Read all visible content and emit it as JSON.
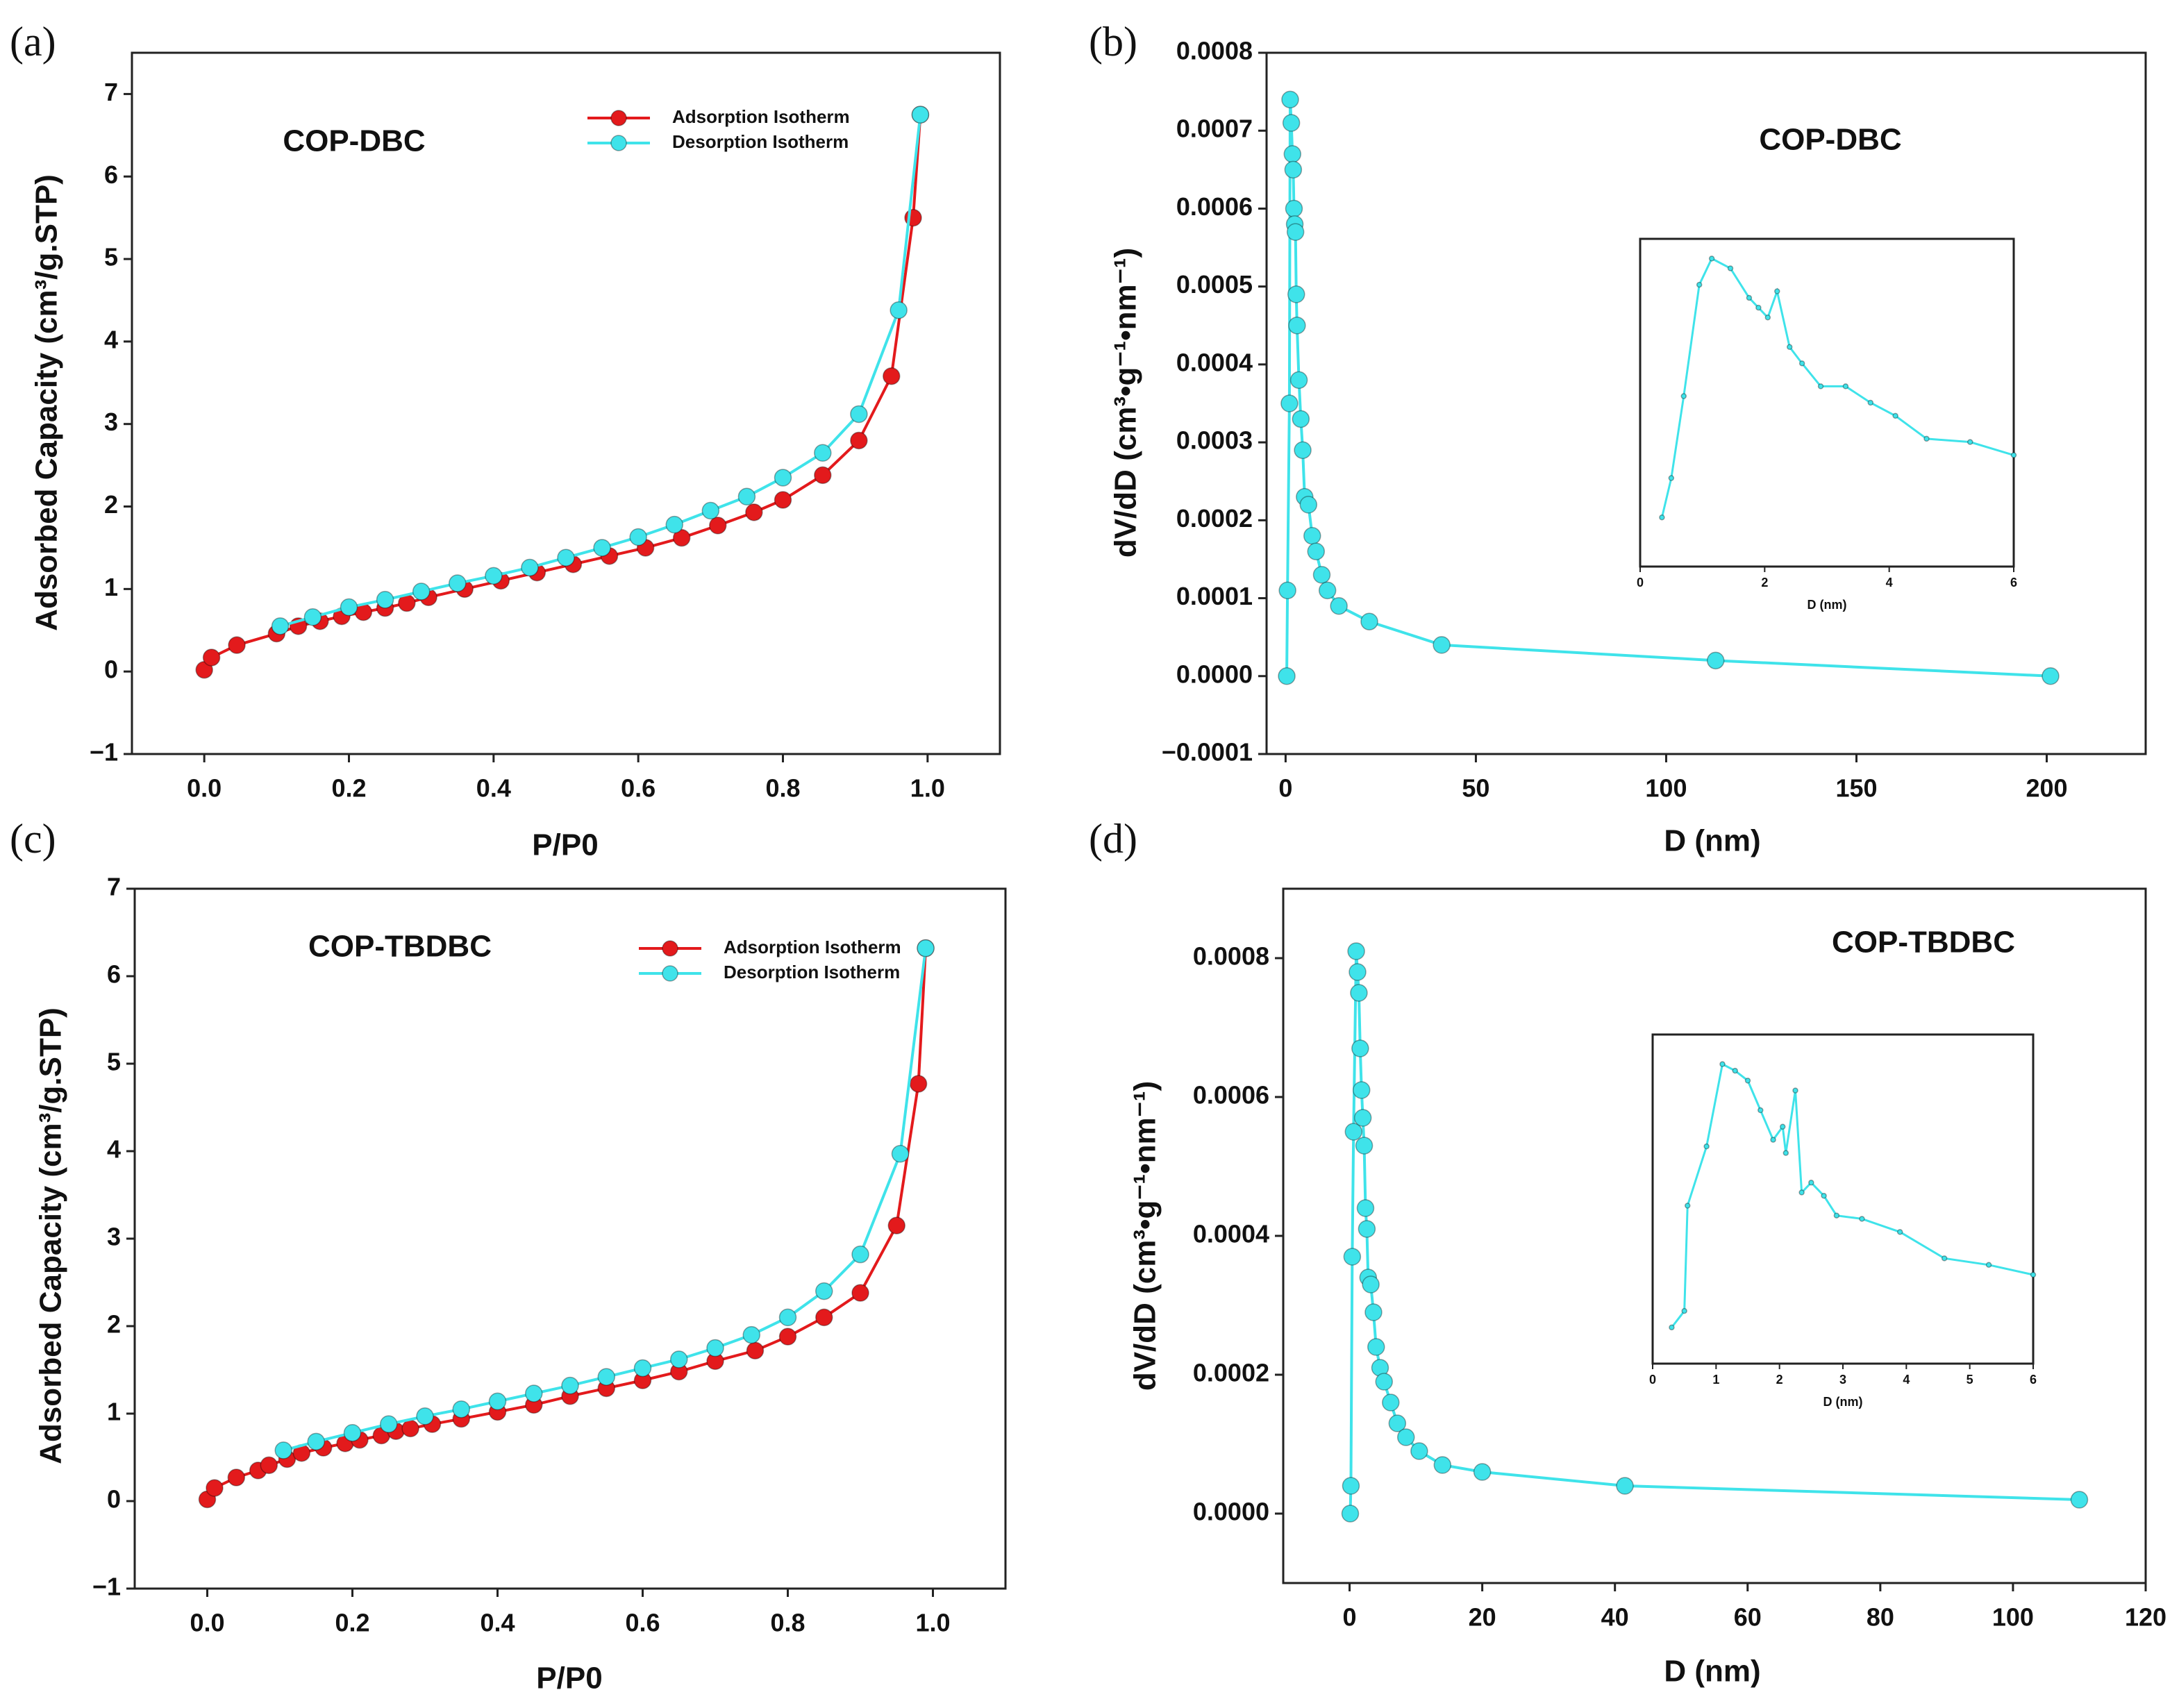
{
  "chart_data": [
    {
      "type": "line",
      "panel": "(a)",
      "title": "COP-DBC",
      "xlabel": "P/P0",
      "ylabel": "Adsorbed Capacity (cm³/g.STP)",
      "xlim": [
        -0.1,
        1.1
      ],
      "ylim": [
        -1,
        7.5
      ],
      "xticks": [
        {
          "value": 0,
          "label": "0.0"
        },
        {
          "value": 0.2,
          "label": "0.2"
        },
        {
          "value": 0.4,
          "label": "0.4"
        },
        {
          "value": 0.6,
          "label": "0.6"
        },
        {
          "value": 0.8,
          "label": "0.8"
        },
        {
          "value": 1,
          "label": "1.0"
        }
      ],
      "yticks": [
        {
          "value": -1,
          "label": "−1"
        },
        0,
        1,
        2,
        3,
        4,
        5,
        6,
        7
      ],
      "legend": "upper right",
      "series": [
        {
          "name": "Adsorption Isotherm",
          "color": "#e31a1c",
          "x": [
            0,
            0.01,
            0.045,
            0.1,
            0.13,
            0.16,
            0.19,
            0.22,
            0.25,
            0.28,
            0.31,
            0.36,
            0.41,
            0.46,
            0.51,
            0.56,
            0.61,
            0.66,
            0.71,
            0.76,
            0.8,
            0.855,
            0.905,
            0.95,
            0.98,
            0.99
          ],
          "values": [
            0.02,
            0.17,
            0.32,
            0.46,
            0.55,
            0.61,
            0.67,
            0.72,
            0.77,
            0.83,
            0.9,
            1.0,
            1.1,
            1.2,
            1.3,
            1.4,
            1.5,
            1.62,
            1.77,
            1.93,
            2.08,
            2.38,
            2.8,
            3.58,
            5.5,
            6.75
          ]
        },
        {
          "name": "Desorption Isotherm",
          "color": "#3fe3ea",
          "x": [
            0.105,
            0.15,
            0.2,
            0.25,
            0.3,
            0.35,
            0.4,
            0.45,
            0.5,
            0.55,
            0.6,
            0.65,
            0.7,
            0.75,
            0.8,
            0.855,
            0.905,
            0.96,
            0.99
          ],
          "values": [
            0.55,
            0.66,
            0.78,
            0.87,
            0.97,
            1.07,
            1.16,
            1.26,
            1.38,
            1.5,
            1.63,
            1.78,
            1.95,
            2.12,
            2.35,
            2.65,
            3.12,
            4.38,
            6.75
          ]
        }
      ]
    },
    {
      "type": "line",
      "panel": "(b)",
      "title": "COP-DBC",
      "xlabel": "D (nm)",
      "ylabel": "dV/dD (cm³•g⁻¹•nm⁻¹)",
      "xlim": [
        -5,
        226
      ],
      "ylim": [
        -0.0001,
        0.0008
      ],
      "xticks": [
        0,
        50,
        100,
        150,
        200
      ],
      "yticks": [
        {
          "value": -0.0001,
          "label": "−0.0001"
        },
        {
          "value": 0,
          "label": "0.0000"
        },
        {
          "value": 0.0001,
          "label": "0.0001"
        },
        {
          "value": 0.0002,
          "label": "0.0002"
        },
        {
          "value": 0.0003,
          "label": "0.0003"
        },
        {
          "value": 0.0004,
          "label": "0.0004"
        },
        {
          "value": 0.0005,
          "label": "0.0005"
        },
        {
          "value": 0.0006,
          "label": "0.0006"
        },
        {
          "value": 0.0007,
          "label": "0.0007"
        },
        {
          "value": 0.0008,
          "label": "0.0008"
        }
      ],
      "series": [
        {
          "color": "#3fe3ea",
          "x": [
            0.3,
            0.5,
            1,
            1.2,
            1.5,
            1.8,
            2,
            2.2,
            2.4,
            2.6,
            2.8,
            3,
            3.5,
            4,
            4.5,
            5,
            6,
            7,
            8,
            9.5,
            11,
            14,
            22,
            41,
            113,
            201
          ],
          "values": [
            0.0,
            0.00011,
            0.00035,
            0.00074,
            0.00071,
            0.00067,
            0.00065,
            0.0006,
            0.00058,
            0.00057,
            0.00049,
            0.00045,
            0.00038,
            0.00033,
            0.00029,
            0.00023,
            0.00022,
            0.00018,
            0.00016,
            0.00013,
            0.00011,
            9e-05,
            7e-05,
            4e-05,
            2e-05,
            0.0
          ]
        }
      ],
      "inset": {
        "type": "line",
        "xlabel": "D (nm)",
        "color": "#3fe3ea",
        "xlim": [
          0,
          6
        ],
        "ylim": [
          0,
          1
        ],
        "xticks": [
          0,
          2,
          4,
          6
        ],
        "x": [
          0.35,
          0.5,
          0.7,
          0.95,
          1.15,
          1.45,
          1.75,
          1.9,
          2.05,
          2.2,
          2.4,
          2.6,
          2.9,
          3.3,
          3.7,
          4.1,
          4.6,
          5.3,
          6
        ],
        "values": [
          0.15,
          0.27,
          0.52,
          0.86,
          0.94,
          0.91,
          0.82,
          0.79,
          0.76,
          0.84,
          0.67,
          0.62,
          0.55,
          0.55,
          0.5,
          0.46,
          0.39,
          0.38,
          0.34
        ]
      }
    },
    {
      "type": "line",
      "panel": "(c)",
      "title": "COP-TBDBC",
      "xlabel": "P/P0",
      "ylabel": "Adsorbed Capacity (cm³/g.STP)",
      "xlim": [
        -0.1,
        1.1
      ],
      "ylim": [
        -1,
        7
      ],
      "xticks": [
        {
          "value": 0,
          "label": "0.0"
        },
        {
          "value": 0.2,
          "label": "0.2"
        },
        {
          "value": 0.4,
          "label": "0.4"
        },
        {
          "value": 0.6,
          "label": "0.6"
        },
        {
          "value": 0.8,
          "label": "0.8"
        },
        {
          "value": 1,
          "label": "1.0"
        }
      ],
      "yticks": [
        {
          "value": -1,
          "label": "−1"
        },
        0,
        1,
        2,
        3,
        4,
        5,
        6,
        7
      ],
      "legend": "upper right",
      "series": [
        {
          "name": "Adsorption Isotherm",
          "color": "#e31a1c",
          "x": [
            0,
            0.01,
            0.04,
            0.07,
            0.085,
            0.11,
            0.13,
            0.16,
            0.19,
            0.21,
            0.24,
            0.26,
            0.28,
            0.31,
            0.35,
            0.4,
            0.45,
            0.5,
            0.55,
            0.6,
            0.65,
            0.7,
            0.755,
            0.8,
            0.85,
            0.9,
            0.95,
            0.98,
            0.99
          ],
          "values": [
            0.02,
            0.15,
            0.27,
            0.35,
            0.41,
            0.48,
            0.55,
            0.61,
            0.66,
            0.7,
            0.75,
            0.8,
            0.83,
            0.88,
            0.94,
            1.02,
            1.1,
            1.2,
            1.29,
            1.38,
            1.48,
            1.6,
            1.72,
            1.88,
            2.1,
            2.38,
            3.15,
            4.77,
            6.32
          ]
        },
        {
          "name": "Desorption Isotherm",
          "color": "#3fe3ea",
          "x": [
            0.105,
            0.15,
            0.2,
            0.25,
            0.3,
            0.35,
            0.4,
            0.45,
            0.5,
            0.55,
            0.6,
            0.65,
            0.7,
            0.75,
            0.8,
            0.85,
            0.9,
            0.955,
            0.99
          ],
          "values": [
            0.58,
            0.68,
            0.78,
            0.88,
            0.97,
            1.05,
            1.14,
            1.23,
            1.32,
            1.42,
            1.52,
            1.62,
            1.75,
            1.9,
            2.1,
            2.4,
            2.82,
            3.97,
            6.32
          ]
        }
      ]
    },
    {
      "type": "line",
      "panel": "(d)",
      "title": "COP-TBDBC",
      "xlabel": "D (nm)",
      "ylabel": "dV/dD (cm³•g⁻¹•nm⁻¹)",
      "xlim": [
        -10,
        120
      ],
      "ylim": [
        -0.0001,
        0.0009
      ],
      "xticks": [
        0,
        20,
        40,
        60,
        80,
        100,
        120
      ],
      "yticks": [
        {
          "value": 0,
          "label": "0.0000"
        },
        {
          "value": 0.0002,
          "label": "0.0002"
        },
        {
          "value": 0.0004,
          "label": "0.0004"
        },
        {
          "value": 0.0006,
          "label": "0.0006"
        },
        {
          "value": 0.0008,
          "label": "0.0008"
        }
      ],
      "series": [
        {
          "color": "#3fe3ea",
          "x": [
            0.1,
            0.2,
            0.4,
            0.6,
            1,
            1.2,
            1.4,
            1.6,
            1.8,
            2,
            2.2,
            2.4,
            2.6,
            2.8,
            3.2,
            3.6,
            4,
            4.6,
            5.2,
            6.2,
            7.2,
            8.5,
            10.5,
            14,
            20,
            41.5,
            110
          ],
          "values": [
            0.0,
            4e-05,
            0.00037,
            0.00055,
            0.00081,
            0.00078,
            0.00075,
            0.00067,
            0.00061,
            0.00057,
            0.00053,
            0.00044,
            0.00041,
            0.00034,
            0.00033,
            0.00029,
            0.00024,
            0.00021,
            0.00019,
            0.00016,
            0.00013,
            0.00011,
            9e-05,
            7e-05,
            6e-05,
            4e-05,
            2e-05
          ]
        }
      ],
      "inset": {
        "type": "line",
        "xlabel": "D (nm)",
        "color": "#3fe3ea",
        "xlim": [
          0,
          6
        ],
        "ylim": [
          0,
          1
        ],
        "xticks": [
          0,
          1,
          2,
          3,
          4,
          5,
          6
        ],
        "x": [
          0.3,
          0.5,
          0.55,
          0.85,
          1.1,
          1.3,
          1.5,
          1.7,
          1.9,
          2.05,
          2.1,
          2.25,
          2.35,
          2.5,
          2.7,
          2.9,
          3.3,
          3.9,
          4.6,
          5.3,
          6
        ],
        "values": [
          0.11,
          0.16,
          0.48,
          0.66,
          0.91,
          0.89,
          0.86,
          0.77,
          0.68,
          0.72,
          0.64,
          0.83,
          0.52,
          0.55,
          0.51,
          0.45,
          0.44,
          0.4,
          0.32,
          0.3,
          0.27
        ]
      }
    }
  ]
}
